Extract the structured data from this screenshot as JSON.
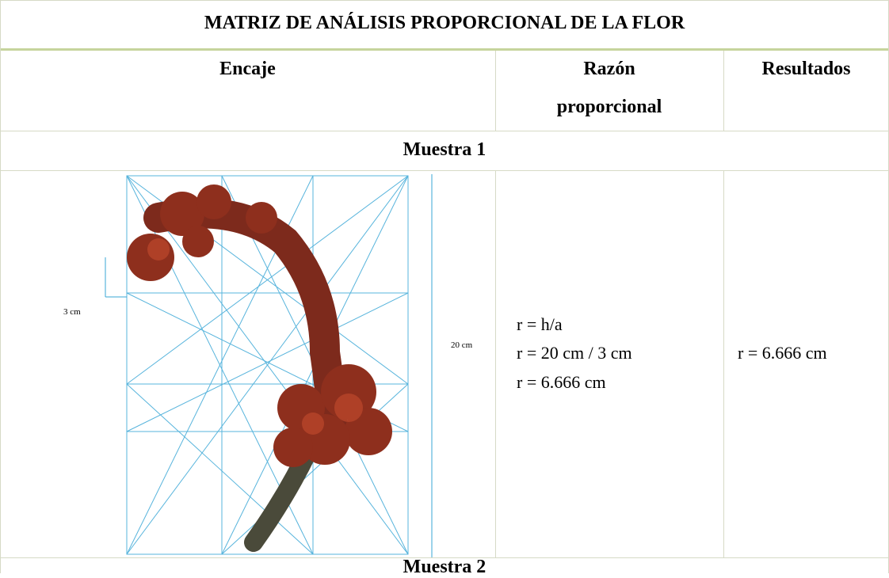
{
  "title": "MATRIZ DE ANÁLISIS PROPORCIONAL DE LA FLOR",
  "header": [
    "Encaje",
    "Razón proporcional",
    "Resultados"
  ],
  "samples": [
    {
      "label": "Muestra 1",
      "image_labels": {
        "width": "3 cm",
        "height": "20 cm"
      },
      "formula": [
        "r = h/a",
        "r = 20 cm / 3 cm",
        "r = 6.666 cm"
      ],
      "result": "r = 6.666 cm"
    },
    {
      "label": "Muestra 2"
    }
  ]
}
